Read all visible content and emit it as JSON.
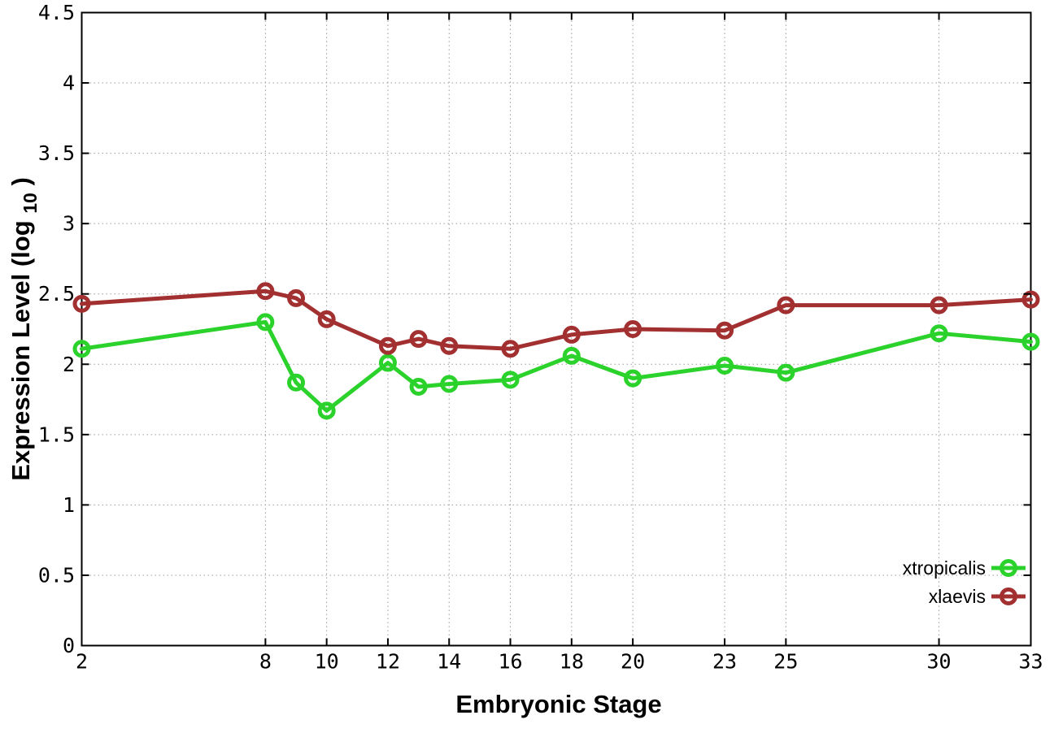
{
  "page": {
    "background": "#ffffff"
  },
  "chart_data": {
    "type": "line",
    "title": "",
    "xlabel": "Embryonic Stage",
    "ylabel": "Expression Level (log10)",
    "ylabel_parts": {
      "prefix": "Expression Level (log",
      "sub": "10",
      "suffix": ")"
    },
    "xlim": [
      2,
      33
    ],
    "ylim": [
      0,
      4.5
    ],
    "grid": true,
    "grid_style": "dotted",
    "grid_color": "#9a9a9a",
    "border_color": "#000000",
    "xticks": [
      2,
      8,
      10,
      12,
      14,
      16,
      18,
      20,
      23,
      25,
      30,
      33
    ],
    "xtick_labels": [
      "2",
      "8",
      "10",
      "12",
      "14",
      "16",
      "18",
      "20",
      "23",
      "25",
      "30",
      "33"
    ],
    "yticks": [
      0,
      0.5,
      1,
      1.5,
      2,
      2.5,
      3,
      3.5,
      4,
      4.5
    ],
    "ytick_labels": [
      "0",
      "0.5",
      "1",
      "1.5",
      "2",
      "2.5",
      "3",
      "3.5",
      "4",
      "4.5"
    ],
    "x": [
      2,
      8,
      9,
      10,
      12,
      13,
      14,
      16,
      18,
      20,
      23,
      25,
      30,
      33
    ],
    "series": [
      {
        "name": "xtropicalis",
        "color": "#2bd22b",
        "marker": "open-circle",
        "values": [
          2.11,
          2.3,
          1.87,
          1.67,
          2.01,
          1.84,
          1.86,
          1.89,
          2.06,
          1.9,
          1.99,
          1.94,
          2.22,
          2.16
        ]
      },
      {
        "name": "xlaevis",
        "color": "#a33030",
        "marker": "open-circle",
        "values": [
          2.43,
          2.52,
          2.47,
          2.32,
          2.13,
          2.18,
          2.13,
          2.11,
          2.21,
          2.25,
          2.24,
          2.42,
          2.42,
          2.46
        ]
      }
    ],
    "legend_position": "inside-bottom-right"
  }
}
